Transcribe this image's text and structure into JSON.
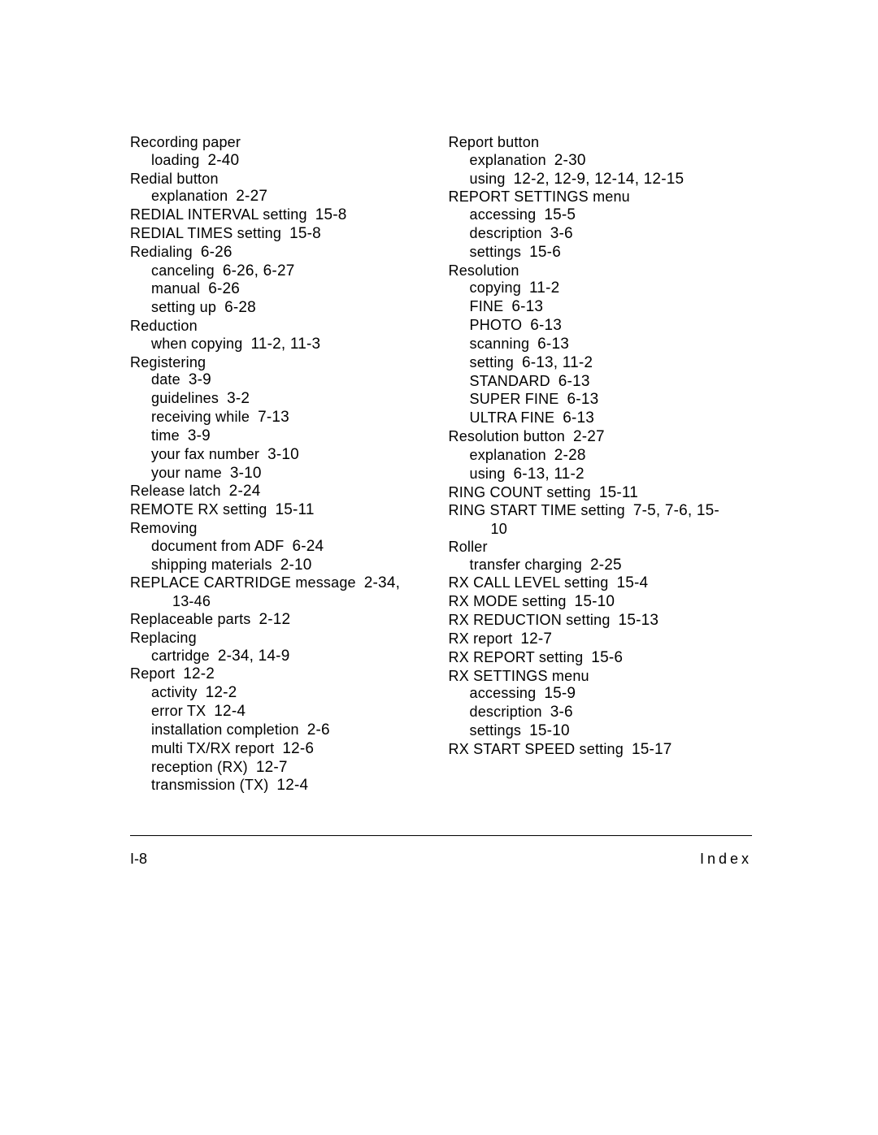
{
  "footer": {
    "left": "I-8",
    "right": "Index"
  },
  "columns": [
    {
      "entries": [
        {
          "level": 0,
          "term": "Recording paper",
          "pages": ""
        },
        {
          "level": 1,
          "term": "loading",
          "pages": "2-40"
        },
        {
          "level": 0,
          "term": "Redial button",
          "pages": ""
        },
        {
          "level": 1,
          "term": "explanation",
          "pages": "2-27"
        },
        {
          "level": 0,
          "term": "REDIAL INTERVAL setting",
          "pages": "15-8"
        },
        {
          "level": 0,
          "term": "REDIAL TIMES setting",
          "pages": "15-8"
        },
        {
          "level": 0,
          "term": "Redialing",
          "pages": "6-26"
        },
        {
          "level": 1,
          "term": "canceling",
          "pages": "6-26, 6-27"
        },
        {
          "level": 1,
          "term": "manual",
          "pages": "6-26"
        },
        {
          "level": 1,
          "term": "setting up",
          "pages": "6-28"
        },
        {
          "level": 0,
          "term": "Reduction",
          "pages": ""
        },
        {
          "level": 1,
          "term": "when copying",
          "pages": "11-2, 11-3"
        },
        {
          "level": 0,
          "term": "Registering",
          "pages": ""
        },
        {
          "level": 1,
          "term": "date",
          "pages": "3-9"
        },
        {
          "level": 1,
          "term": "guidelines",
          "pages": "3-2"
        },
        {
          "level": 1,
          "term": "receiving while",
          "pages": "7-13"
        },
        {
          "level": 1,
          "term": "time",
          "pages": "3-9"
        },
        {
          "level": 1,
          "term": "your fax number",
          "pages": "3-10"
        },
        {
          "level": 1,
          "term": "your name",
          "pages": "3-10"
        },
        {
          "level": 0,
          "term": "Release latch",
          "pages": "2-24"
        },
        {
          "level": 0,
          "term": "REMOTE RX setting",
          "pages": "15-11"
        },
        {
          "level": 0,
          "term": "Removing",
          "pages": ""
        },
        {
          "level": 1,
          "term": "document from ADF",
          "pages": "6-24"
        },
        {
          "level": 1,
          "term": "shipping materials",
          "pages": "2-10"
        },
        {
          "level": 0,
          "term": "REPLACE CARTRIDGE message",
          "pages": "2-34,"
        },
        {
          "level": 2,
          "term": "13-46",
          "pages": ""
        },
        {
          "level": 0,
          "term": "Replaceable parts",
          "pages": "2-12"
        },
        {
          "level": 0,
          "term": "Replacing",
          "pages": ""
        },
        {
          "level": 1,
          "term": "cartridge",
          "pages": "2-34, 14-9"
        },
        {
          "level": 0,
          "term": "Report",
          "pages": "12-2"
        },
        {
          "level": 1,
          "term": "activity",
          "pages": "12-2"
        },
        {
          "level": 1,
          "term": "error TX",
          "pages": "12-4"
        },
        {
          "level": 1,
          "term": "installation completion",
          "pages": "2-6"
        },
        {
          "level": 1,
          "term": "multi TX/RX report",
          "pages": "12-6"
        },
        {
          "level": 1,
          "term": "reception (RX)",
          "pages": "12-7"
        },
        {
          "level": 1,
          "term": "transmission (TX)",
          "pages": "12-4"
        }
      ]
    },
    {
      "entries": [
        {
          "level": 0,
          "term": "Report button",
          "pages": ""
        },
        {
          "level": 1,
          "term": "explanation",
          "pages": "2-30"
        },
        {
          "level": 1,
          "term": "using",
          "pages": "12-2, 12-9, 12-14, 12-15"
        },
        {
          "level": 0,
          "term": "REPORT SETTINGS menu",
          "pages": ""
        },
        {
          "level": 1,
          "term": "accessing",
          "pages": "15-5"
        },
        {
          "level": 1,
          "term": "description",
          "pages": "3-6"
        },
        {
          "level": 1,
          "term": "settings",
          "pages": "15-6"
        },
        {
          "level": 0,
          "term": "Resolution",
          "pages": ""
        },
        {
          "level": 1,
          "term": "copying",
          "pages": "11-2"
        },
        {
          "level": 1,
          "term": "FINE",
          "pages": "6-13"
        },
        {
          "level": 1,
          "term": "PHOTO",
          "pages": "6-13"
        },
        {
          "level": 1,
          "term": "scanning",
          "pages": "6-13"
        },
        {
          "level": 1,
          "term": "setting",
          "pages": "6-13, 11-2"
        },
        {
          "level": 1,
          "term": "STANDARD",
          "pages": "6-13"
        },
        {
          "level": 1,
          "term": "SUPER FINE",
          "pages": "6-13"
        },
        {
          "level": 1,
          "term": "ULTRA FINE",
          "pages": "6-13"
        },
        {
          "level": 0,
          "term": "Resolution button",
          "pages": "2-27"
        },
        {
          "level": 1,
          "term": "explanation",
          "pages": "2-28"
        },
        {
          "level": 1,
          "term": "using",
          "pages": "6-13, 11-2"
        },
        {
          "level": 0,
          "term": "RING COUNT setting",
          "pages": "15-11"
        },
        {
          "level": 0,
          "term": "RING START TIME setting",
          "pages": "7-5, 7-6, 15-"
        },
        {
          "level": 2,
          "term": "10",
          "pages": ""
        },
        {
          "level": 0,
          "term": "Roller",
          "pages": ""
        },
        {
          "level": 1,
          "term": "transfer charging",
          "pages": "2-25"
        },
        {
          "level": 0,
          "term": "RX CALL LEVEL setting",
          "pages": "15-4"
        },
        {
          "level": 0,
          "term": "RX MODE setting",
          "pages": "15-10"
        },
        {
          "level": 0,
          "term": "RX REDUCTION setting",
          "pages": "15-13"
        },
        {
          "level": 0,
          "term": "RX report",
          "pages": "12-7"
        },
        {
          "level": 0,
          "term": "RX REPORT setting",
          "pages": "15-6"
        },
        {
          "level": 0,
          "term": "RX SETTINGS menu",
          "pages": ""
        },
        {
          "level": 1,
          "term": "accessing",
          "pages": "15-9"
        },
        {
          "level": 1,
          "term": "description",
          "pages": "3-6"
        },
        {
          "level": 1,
          "term": "settings",
          "pages": "15-10"
        },
        {
          "level": 0,
          "term": "RX START SPEED setting",
          "pages": "15-17"
        }
      ]
    }
  ]
}
